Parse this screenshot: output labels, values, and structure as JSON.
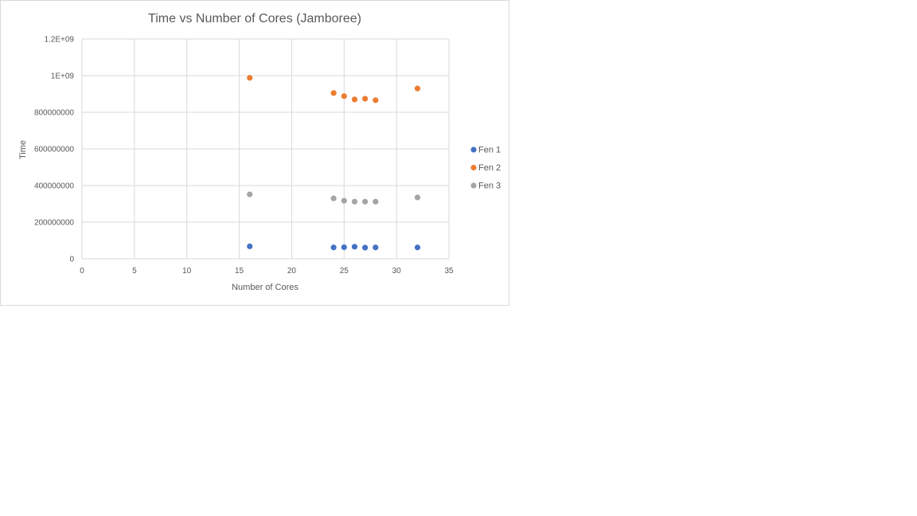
{
  "chart_data": {
    "type": "scatter",
    "title": "Time vs Number of Cores (Jamboree)",
    "xlabel": "Number  of Cores",
    "ylabel": "Time",
    "xlim": [
      0,
      35
    ],
    "ylim": [
      0,
      1200000000
    ],
    "x_ticks": [
      0,
      5,
      10,
      15,
      20,
      25,
      30,
      35
    ],
    "x_tick_labels": [
      "0",
      "5",
      "10",
      "15",
      "20",
      "25",
      "30",
      "35"
    ],
    "y_ticks": [
      0,
      200000000,
      400000000,
      600000000,
      800000000,
      1000000000,
      1200000000
    ],
    "y_tick_labels": [
      "0",
      "200000000",
      "400000000",
      "600000000",
      "800000000",
      "1E+09",
      "1.2E+09"
    ],
    "grid": true,
    "legend_position": "right",
    "series": [
      {
        "name": "Fen 1",
        "color": "#4472c4",
        "points": [
          [
            16,
            68000000
          ],
          [
            24,
            62000000
          ],
          [
            25,
            63000000
          ],
          [
            26,
            66000000
          ],
          [
            27,
            61000000
          ],
          [
            28,
            62000000
          ],
          [
            32,
            62000000
          ]
        ]
      },
      {
        "name": "Fen 2",
        "color": "#ed7d31",
        "points": [
          [
            16,
            988000000
          ],
          [
            24,
            905000000
          ],
          [
            25,
            888000000
          ],
          [
            26,
            870000000
          ],
          [
            27,
            874000000
          ],
          [
            28,
            866000000
          ],
          [
            32,
            930000000
          ]
        ]
      },
      {
        "name": "Fen 3",
        "color": "#a5a5a5",
        "points": [
          [
            16,
            352000000
          ],
          [
            24,
            330000000
          ],
          [
            25,
            317000000
          ],
          [
            26,
            312000000
          ],
          [
            27,
            312000000
          ],
          [
            28,
            312000000
          ],
          [
            32,
            335000000
          ]
        ]
      }
    ]
  }
}
